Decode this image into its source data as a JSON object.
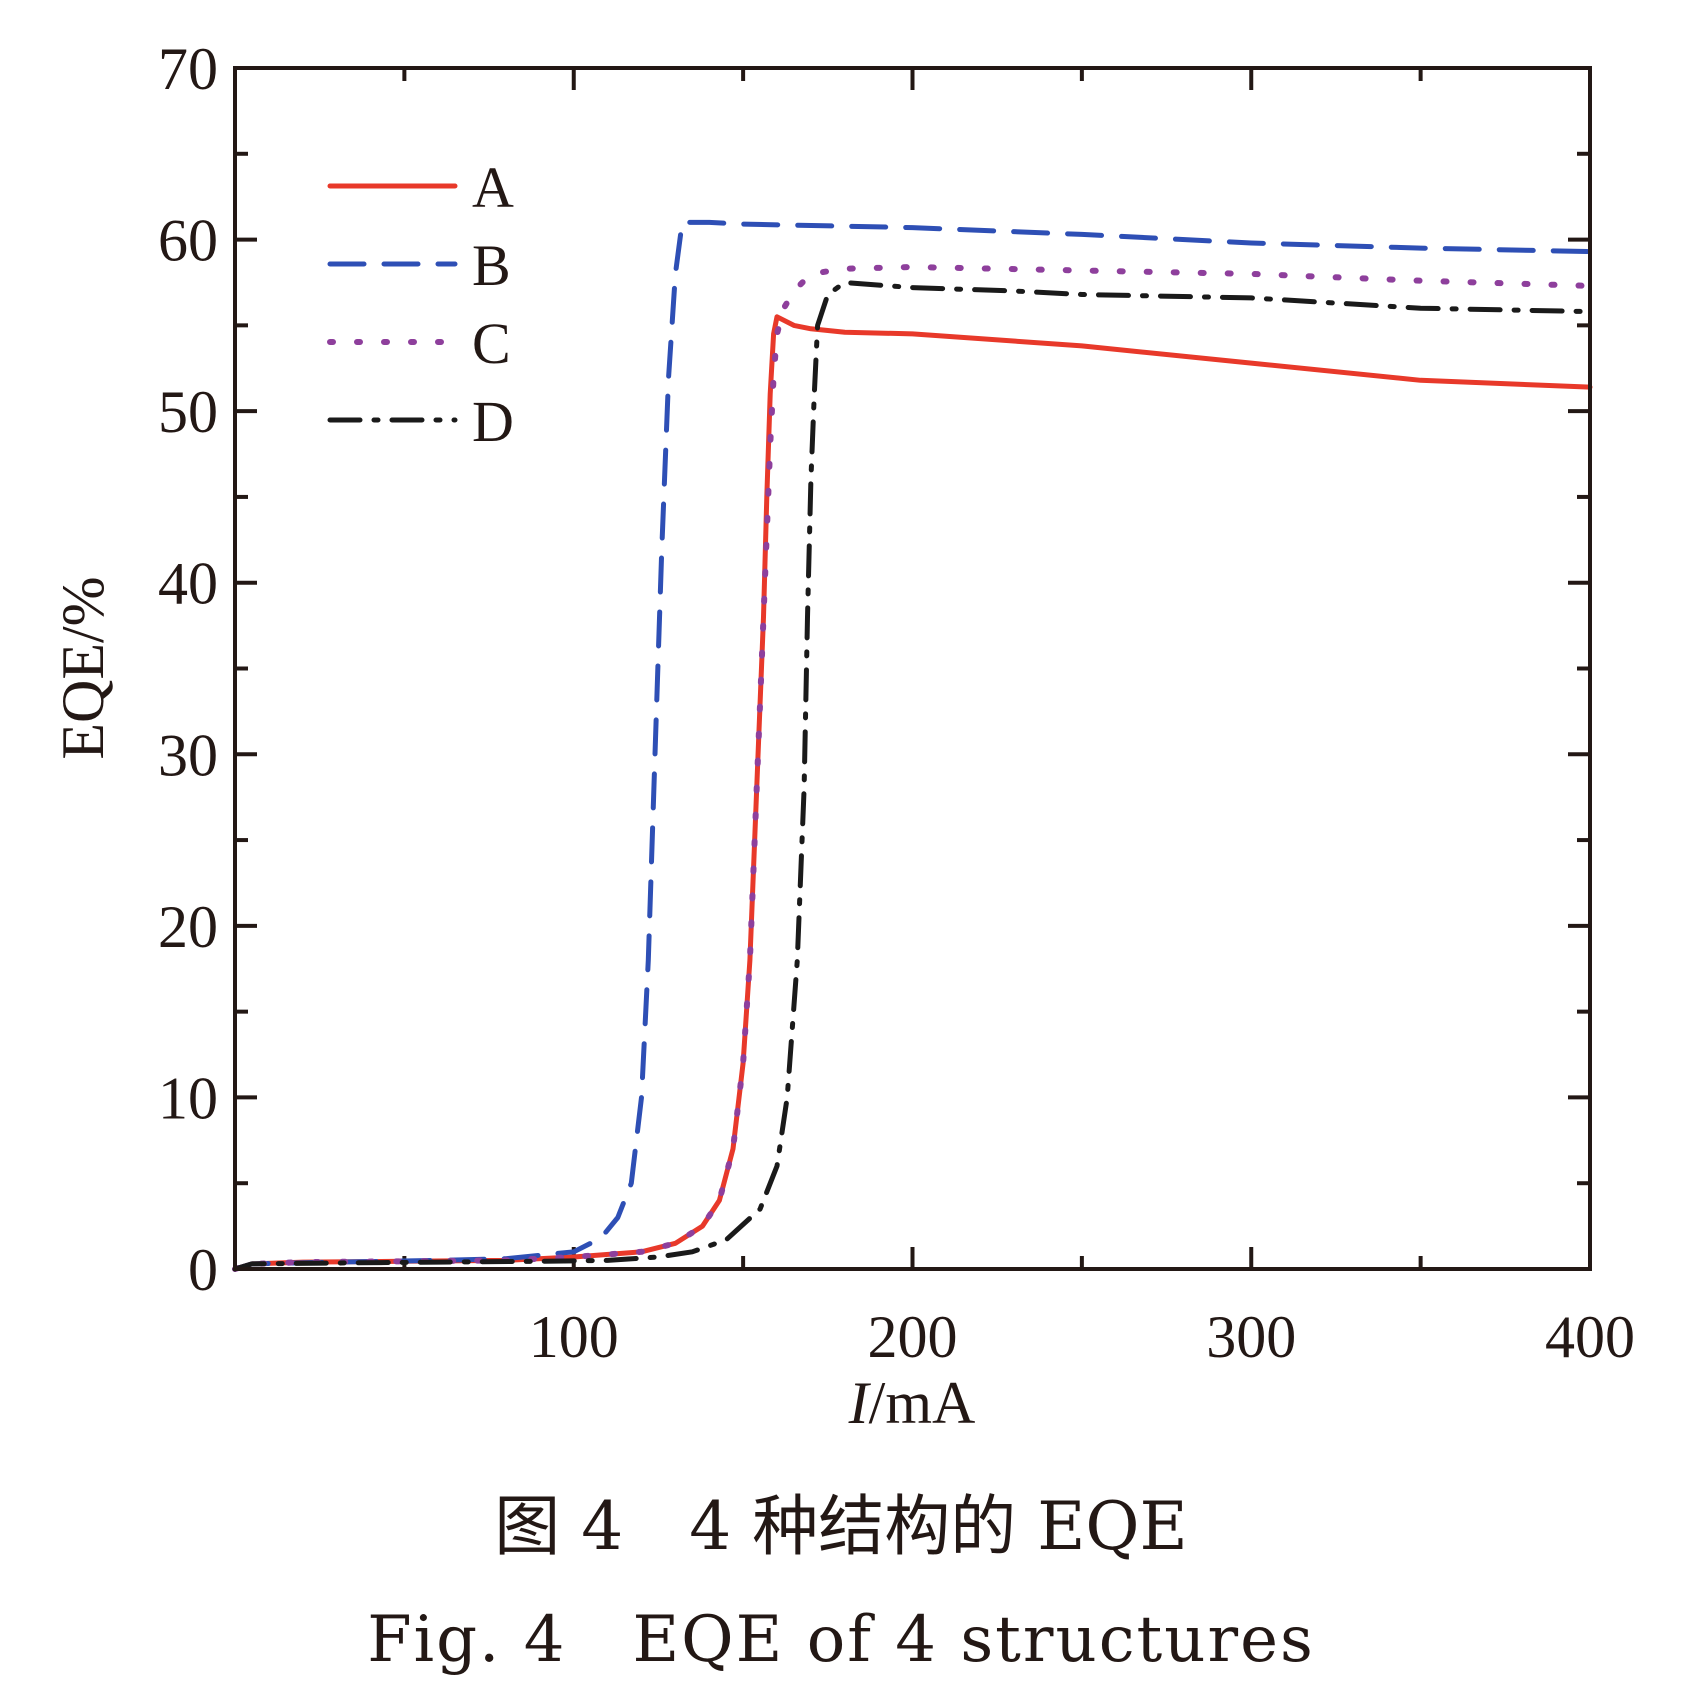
{
  "chart_data": {
    "type": "line",
    "xlabel_italic": "I",
    "xlabel_rest": "/mA",
    "ylabel": "EQE/%",
    "xlim": [
      0,
      400
    ],
    "ylim": [
      0,
      70
    ],
    "x_major_ticks": [
      100,
      200,
      300,
      400
    ],
    "x_minor_ticks": [
      50,
      150,
      250,
      350
    ],
    "y_major_ticks": [
      0,
      10,
      20,
      30,
      40,
      50,
      60,
      70
    ],
    "y_minor_ticks": [
      5,
      15,
      25,
      35,
      45,
      55,
      65
    ],
    "grid": false,
    "legend_position": "top-left",
    "series": [
      {
        "name": "A",
        "color": "#e8392a",
        "style": "solid",
        "points": [
          [
            0,
            0
          ],
          [
            5,
            0.3
          ],
          [
            20,
            0.4
          ],
          [
            50,
            0.45
          ],
          [
            80,
            0.5
          ],
          [
            100,
            0.7
          ],
          [
            120,
            1.0
          ],
          [
            130,
            1.5
          ],
          [
            138,
            2.5
          ],
          [
            143,
            4
          ],
          [
            147,
            7
          ],
          [
            150,
            12
          ],
          [
            152,
            18
          ],
          [
            154,
            28
          ],
          [
            156,
            38
          ],
          [
            157,
            45
          ],
          [
            158,
            51
          ],
          [
            159,
            54.5
          ],
          [
            160,
            55.5
          ],
          [
            165,
            55
          ],
          [
            170,
            54.8
          ],
          [
            180,
            54.6
          ],
          [
            200,
            54.5
          ],
          [
            250,
            53.8
          ],
          [
            300,
            52.8
          ],
          [
            350,
            51.8
          ],
          [
            400,
            51.4
          ]
        ]
      },
      {
        "name": "B",
        "color": "#2e4fb5",
        "style": "dashed",
        "points": [
          [
            0,
            0
          ],
          [
            5,
            0.3
          ],
          [
            30,
            0.4
          ],
          [
            60,
            0.5
          ],
          [
            80,
            0.6
          ],
          [
            100,
            1.0
          ],
          [
            108,
            1.8
          ],
          [
            113,
            3
          ],
          [
            117,
            5
          ],
          [
            120,
            10
          ],
          [
            122,
            18
          ],
          [
            124,
            30
          ],
          [
            126,
            42
          ],
          [
            128,
            52
          ],
          [
            130,
            58
          ],
          [
            132,
            61
          ],
          [
            140,
            61
          ],
          [
            150,
            60.9
          ],
          [
            200,
            60.7
          ],
          [
            250,
            60.3
          ],
          [
            300,
            59.8
          ],
          [
            350,
            59.5
          ],
          [
            400,
            59.3
          ]
        ]
      },
      {
        "name": "C",
        "color": "#8e3f9c",
        "style": "dotted",
        "points": [
          [
            0,
            0
          ],
          [
            5,
            0.3
          ],
          [
            20,
            0.4
          ],
          [
            50,
            0.45
          ],
          [
            80,
            0.5
          ],
          [
            100,
            0.7
          ],
          [
            120,
            1.0
          ],
          [
            130,
            1.5
          ],
          [
            138,
            2.5
          ],
          [
            143,
            4
          ],
          [
            147,
            7
          ],
          [
            150,
            12
          ],
          [
            152,
            18
          ],
          [
            154,
            28
          ],
          [
            156,
            38
          ],
          [
            158,
            48
          ],
          [
            159,
            52
          ],
          [
            160,
            54.5
          ],
          [
            162,
            56
          ],
          [
            165,
            57
          ],
          [
            170,
            58
          ],
          [
            180,
            58.3
          ],
          [
            200,
            58.4
          ],
          [
            250,
            58.2
          ],
          [
            300,
            58
          ],
          [
            350,
            57.6
          ],
          [
            400,
            57.3
          ]
        ]
      },
      {
        "name": "D",
        "color": "#1a1a1a",
        "style": "dashdot",
        "points": [
          [
            0,
            0
          ],
          [
            5,
            0.3
          ],
          [
            30,
            0.35
          ],
          [
            60,
            0.4
          ],
          [
            90,
            0.45
          ],
          [
            110,
            0.5
          ],
          [
            125,
            0.7
          ],
          [
            135,
            1.0
          ],
          [
            145,
            1.7
          ],
          [
            155,
            3.5
          ],
          [
            160,
            6
          ],
          [
            163,
            10
          ],
          [
            166,
            18
          ],
          [
            168,
            28
          ],
          [
            169,
            38
          ],
          [
            170,
            46
          ],
          [
            171,
            51
          ],
          [
            172,
            55
          ],
          [
            175,
            56.8
          ],
          [
            180,
            57.5
          ],
          [
            200,
            57.2
          ],
          [
            230,
            57
          ],
          [
            250,
            56.8
          ],
          [
            300,
            56.6
          ],
          [
            350,
            56
          ],
          [
            400,
            55.8
          ]
        ]
      }
    ]
  },
  "caption": {
    "cn": "图 4　4 种结构的 EQE",
    "en": "Fig. 4　EQE of 4 structures"
  }
}
